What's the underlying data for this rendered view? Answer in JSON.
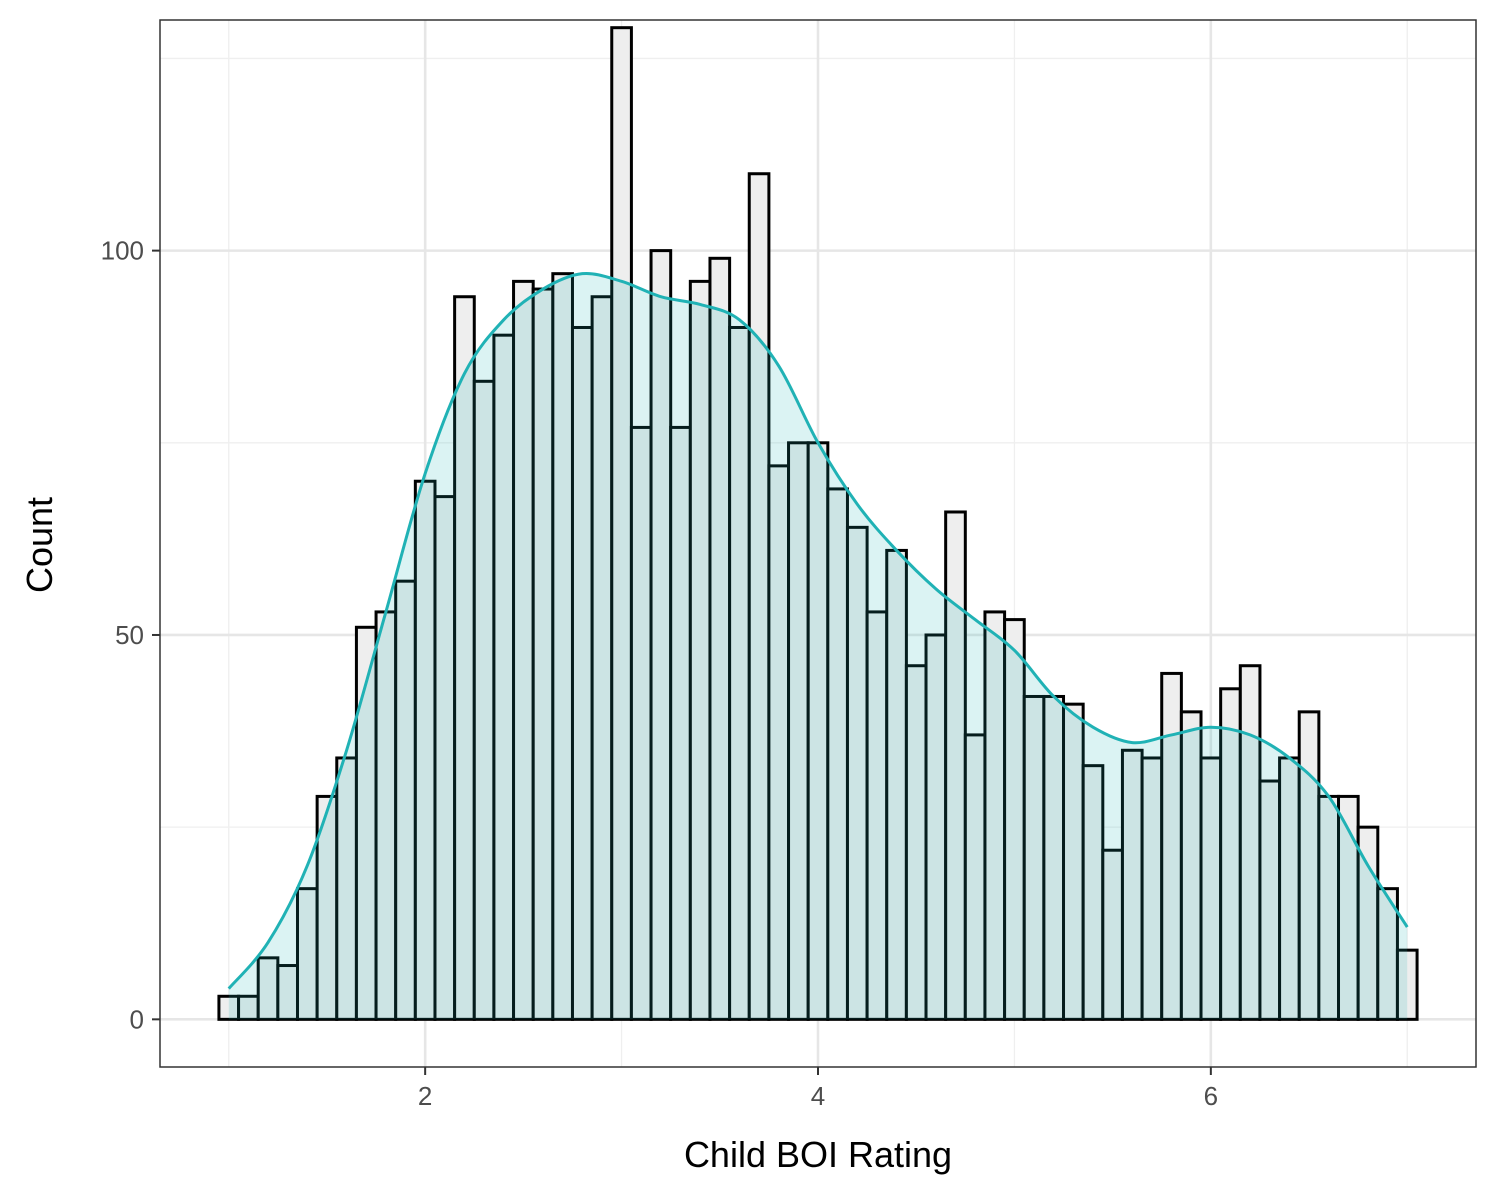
{
  "chart_data": {
    "type": "bar",
    "xlabel": "Child BOI Rating",
    "ylabel": "Count",
    "xlim": [
      0.65,
      7.35
    ],
    "ylim": [
      -6.2,
      130.0
    ],
    "x_ticks": [
      2,
      4,
      6
    ],
    "x_minor_ticks": [
      1,
      3,
      5,
      7
    ],
    "y_ticks": [
      0,
      50,
      100
    ],
    "y_minor_ticks": [
      25,
      75,
      125
    ],
    "grid": true,
    "bin_width": 0.1,
    "bin_start": 0.95,
    "counts": [
      3,
      3,
      8,
      7,
      17,
      29,
      34,
      51,
      53,
      57,
      70,
      68,
      94,
      83,
      89,
      96,
      95,
      97,
      90,
      94,
      129,
      77,
      100,
      77,
      96,
      99,
      90,
      110,
      72,
      75,
      75,
      69,
      64,
      53,
      61,
      46,
      50,
      66,
      37,
      53,
      52,
      42,
      42,
      41,
      33,
      22,
      35,
      34,
      45,
      40,
      34,
      43,
      46,
      31,
      34,
      40,
      29,
      29,
      25,
      17,
      9
    ],
    "density_curve": {
      "x": [
        1.0,
        1.2,
        1.4,
        1.6,
        1.8,
        2.0,
        2.2,
        2.4,
        2.6,
        2.8,
        3.0,
        3.2,
        3.4,
        3.6,
        3.8,
        4.0,
        4.2,
        4.4,
        4.6,
        4.8,
        5.0,
        5.2,
        5.4,
        5.6,
        5.8,
        6.0,
        6.2,
        6.4,
        6.6,
        6.8,
        7.0
      ],
      "y": [
        4,
        10,
        20,
        35,
        53,
        71,
        84,
        91,
        95,
        97,
        96,
        94,
        93,
        91,
        85,
        75,
        67,
        61,
        56,
        52,
        48,
        42,
        38,
        36,
        37,
        38,
        37,
        34,
        29,
        20,
        12
      ]
    },
    "colors": {
      "bar_fill": "#eeeeee",
      "bar_stroke": "#000000",
      "density_line": "#20b2b5",
      "density_fill": "rgba(32,178,181,0.16)",
      "grid_major": "#e6e6e6",
      "grid_minor": "#efefef",
      "panel_border": "#333333"
    }
  }
}
